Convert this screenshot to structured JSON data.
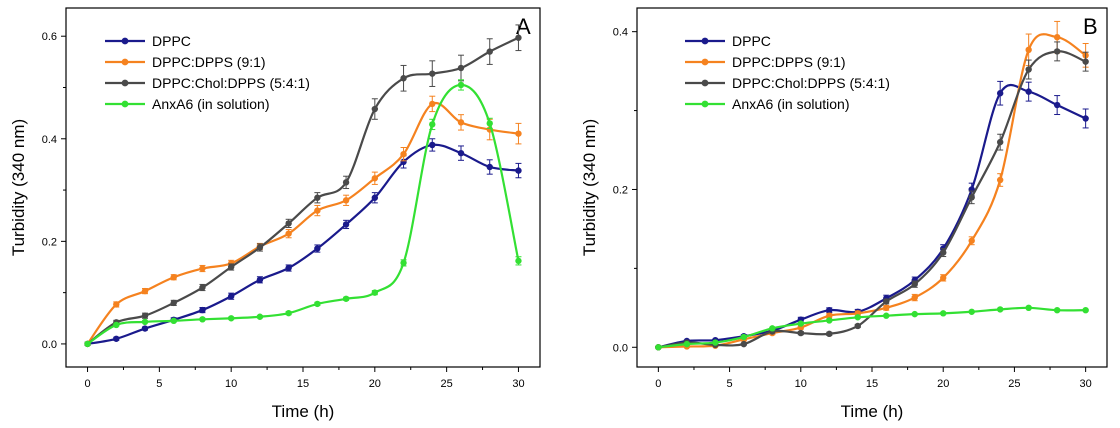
{
  "colors": {
    "DPPC": "#1a1a8c",
    "DPPC:DPPS (9:1)": "#f5821f",
    "DPPC:Chol:DPPS (5:4:1)": "#4a4a4a",
    "AnxA6 (in solution)": "#33e033"
  },
  "chart_data": [
    {
      "type": "line",
      "panel_label": "A",
      "xlabel": "Time (h)",
      "ylabel": "Turbidity (340 nm)",
      "xlim": [
        -1.5,
        31.5
      ],
      "ylim": [
        -0.045,
        0.655
      ],
      "x_ticks": [
        0,
        5,
        10,
        15,
        20,
        25,
        30
      ],
      "x_tick_labels": [
        "0",
        "5",
        "10",
        "15",
        "20",
        "25",
        "30"
      ],
      "y_ticks": [
        0.0,
        0.2,
        0.4,
        0.6
      ],
      "y_tick_labels": [
        "0.0",
        "0.2",
        "0.4",
        "0.6"
      ],
      "legend_position": "top-left",
      "x": [
        0,
        2,
        4,
        6,
        8,
        10,
        12,
        14,
        16,
        18,
        20,
        22,
        24,
        26,
        28,
        30
      ],
      "series": [
        {
          "name": "DPPC",
          "values": [
            0.0,
            0.01,
            0.03,
            0.047,
            0.066,
            0.093,
            0.125,
            0.148,
            0.186,
            0.233,
            0.285,
            0.355,
            0.388,
            0.372,
            0.345,
            0.338
          ],
          "errors": [
            0.003,
            0.003,
            0.003,
            0.004,
            0.005,
            0.006,
            0.006,
            0.006,
            0.007,
            0.008,
            0.01,
            0.012,
            0.012,
            0.014,
            0.014,
            0.014
          ]
        },
        {
          "name": "DPPC:DPPS (9:1)",
          "values": [
            0.0,
            0.077,
            0.103,
            0.13,
            0.147,
            0.157,
            0.19,
            0.215,
            0.26,
            0.28,
            0.323,
            0.37,
            0.468,
            0.432,
            0.418,
            0.41
          ],
          "errors": [
            0.003,
            0.005,
            0.005,
            0.005,
            0.006,
            0.006,
            0.006,
            0.008,
            0.01,
            0.01,
            0.012,
            0.013,
            0.015,
            0.015,
            0.02,
            0.02
          ]
        },
        {
          "name": "DPPC:Chol:DPPS (5:4:1)",
          "values": [
            0.0,
            0.042,
            0.055,
            0.08,
            0.11,
            0.15,
            0.188,
            0.235,
            0.285,
            0.315,
            0.458,
            0.518,
            0.527,
            0.538,
            0.57,
            0.597
          ],
          "errors": [
            0.003,
            0.004,
            0.005,
            0.005,
            0.006,
            0.006,
            0.007,
            0.008,
            0.01,
            0.012,
            0.02,
            0.025,
            0.025,
            0.025,
            0.025,
            0.025
          ]
        },
        {
          "name": "AnxA6 (in solution)",
          "values": [
            0.0,
            0.037,
            0.043,
            0.045,
            0.048,
            0.05,
            0.053,
            0.06,
            0.078,
            0.088,
            0.1,
            0.158,
            0.428,
            0.505,
            0.43,
            0.162
          ],
          "errors": [
            0.002,
            0.002,
            0.002,
            0.002,
            0.002,
            0.002,
            0.002,
            0.003,
            0.003,
            0.003,
            0.004,
            0.006,
            0.01,
            0.01,
            0.01,
            0.008
          ]
        }
      ]
    },
    {
      "type": "line",
      "panel_label": "B",
      "xlabel": "Time (h)",
      "ylabel": "Turbidity (340 nm)",
      "xlim": [
        -1.5,
        31.5
      ],
      "ylim": [
        -0.025,
        0.43
      ],
      "x_ticks": [
        0,
        5,
        10,
        15,
        20,
        25,
        30
      ],
      "x_tick_labels": [
        "0",
        "5",
        "10",
        "15",
        "20",
        "25",
        "30"
      ],
      "y_ticks": [
        0.0,
        0.2,
        0.4
      ],
      "y_tick_labels": [
        "0.0",
        "0.2",
        "0.4"
      ],
      "legend_position": "top-left",
      "x": [
        0,
        2,
        4,
        6,
        8,
        10,
        12,
        14,
        16,
        18,
        20,
        22,
        24,
        26,
        28,
        30
      ],
      "series": [
        {
          "name": "DPPC",
          "values": [
            0.0,
            0.008,
            0.009,
            0.014,
            0.021,
            0.035,
            0.047,
            0.045,
            0.062,
            0.085,
            0.125,
            0.2,
            0.322,
            0.324,
            0.307,
            0.29
          ],
          "errors": [
            0.001,
            0.001,
            0.001,
            0.002,
            0.002,
            0.003,
            0.003,
            0.003,
            0.004,
            0.004,
            0.005,
            0.008,
            0.015,
            0.012,
            0.012,
            0.012
          ]
        },
        {
          "name": "DPPC:DPPS (9:1)",
          "values": [
            0.0,
            0.001,
            0.002,
            0.01,
            0.018,
            0.025,
            0.04,
            0.043,
            0.05,
            0.063,
            0.088,
            0.135,
            0.212,
            0.377,
            0.393,
            0.37
          ],
          "errors": [
            0.001,
            0.001,
            0.001,
            0.002,
            0.002,
            0.002,
            0.003,
            0.003,
            0.003,
            0.004,
            0.004,
            0.005,
            0.008,
            0.02,
            0.02,
            0.015
          ]
        },
        {
          "name": "DPPC:Chol:DPPS (5:4:1)",
          "values": [
            0.0,
            0.006,
            0.003,
            0.004,
            0.02,
            0.018,
            0.017,
            0.027,
            0.058,
            0.08,
            0.12,
            0.19,
            0.26,
            0.352,
            0.375,
            0.362
          ],
          "errors": [
            0.001,
            0.001,
            0.001,
            0.001,
            0.002,
            0.002,
            0.002,
            0.002,
            0.003,
            0.004,
            0.005,
            0.008,
            0.01,
            0.012,
            0.012,
            0.012
          ]
        },
        {
          "name": "AnxA6 (in solution)",
          "values": [
            0.0,
            0.004,
            0.006,
            0.013,
            0.024,
            0.03,
            0.034,
            0.038,
            0.04,
            0.042,
            0.043,
            0.045,
            0.048,
            0.05,
            0.047,
            0.047
          ],
          "errors": [
            0.001,
            0.001,
            0.001,
            0.001,
            0.001,
            0.001,
            0.001,
            0.001,
            0.001,
            0.001,
            0.001,
            0.001,
            0.001,
            0.001,
            0.001,
            0.001
          ]
        }
      ]
    }
  ]
}
